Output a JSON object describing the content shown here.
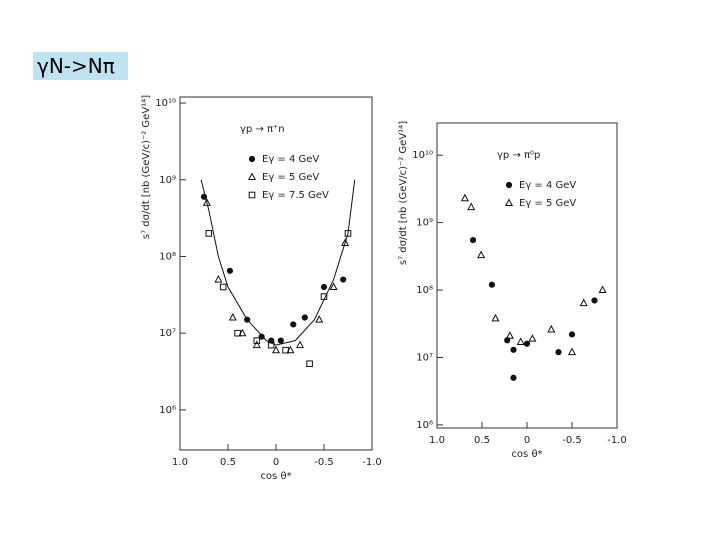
{
  "title": "γN->Nπ",
  "chart_data": [
    {
      "type": "scatter",
      "log_y": true,
      "reaction": "γp → π⁺n",
      "x_label": "cos θ*",
      "y_label": "s⁷ dσ/dt [nb (GeV/c)⁻² GeV¹⁴]",
      "xlim": [
        1,
        -1
      ],
      "ylim": [
        300000,
        12000000000
      ],
      "xticks": [
        {
          "value": 1,
          "label": "1.0"
        },
        0.5,
        0,
        -0.5,
        {
          "value": -1,
          "label": "-1.0"
        }
      ],
      "yticks": [
        {
          "value": 1000000,
          "label": "10⁶"
        },
        {
          "value": 10000000,
          "label": "10⁷"
        },
        {
          "value": 100000000,
          "label": "10⁸"
        },
        {
          "value": 1000000000,
          "label": "10⁹"
        },
        {
          "value": 10000000000,
          "label": "10¹⁰"
        }
      ],
      "series": [
        {
          "name": "Eγ = 4 GeV",
          "marker": "circle",
          "color": "#111",
          "x": [
            0.75,
            0.48,
            0.3,
            0.15,
            0.05,
            -0.05,
            -0.18,
            -0.3,
            -0.5,
            -0.7
          ],
          "values": [
            600000000,
            65000000,
            15000000,
            9000000,
            8000000,
            8000000,
            13000000,
            16000000,
            40000000,
            50000000
          ]
        },
        {
          "name": "Eγ = 5 GeV",
          "marker": "triangle",
          "color": "#111",
          "x": [
            0.72,
            0.6,
            0.45,
            0.35,
            0.2,
            0,
            -0.15,
            -0.25,
            -0.45,
            -0.6,
            -0.72
          ],
          "values": [
            500000000,
            50000000,
            16000000,
            10000000,
            7000000,
            6000000,
            6000000,
            7000000,
            15000000,
            40000000,
            150000000
          ]
        },
        {
          "name": "Eγ = 7.5 GeV",
          "marker": "square",
          "color": "#111",
          "x": [
            0.7,
            0.55,
            0.4,
            0.2,
            0.05,
            -0.1,
            -0.35,
            -0.5,
            -0.75
          ],
          "values": [
            200000000,
            40000000,
            10000000,
            8000000,
            7000000,
            6000000,
            4000000,
            30000000,
            200000000
          ]
        },
        {
          "marker": "line",
          "color": "#111",
          "x": [
            0.78,
            0.7,
            0.6,
            0.5,
            0.3,
            0.1,
            0,
            -0.2,
            -0.4,
            -0.6,
            -0.75,
            -0.82
          ],
          "values": [
            1000000000,
            400000000,
            100000000,
            40000000,
            15000000,
            8000000,
            7000000,
            8000000,
            15000000,
            50000000,
            200000000,
            1000000000
          ]
        }
      ]
    },
    {
      "type": "scatter",
      "log_y": true,
      "reaction": "γp → π⁰p",
      "x_label": "cos θ*",
      "y_label": "s⁷ dσ/dt [nb (GeV/c)⁻² GeV¹⁴]",
      "xlim": [
        1,
        -1
      ],
      "ylim": [
        900000,
        30000000000
      ],
      "xticks": [
        {
          "value": 1,
          "label": "1.0"
        },
        0.5,
        0,
        -0.5,
        {
          "value": -1,
          "label": "-1.0"
        }
      ],
      "yticks": [
        {
          "value": 1000000,
          "label": "10⁶"
        },
        {
          "value": 10000000,
          "label": "10⁷"
        },
        {
          "value": 100000000,
          "label": "10⁸"
        },
        {
          "value": 1000000000,
          "label": "10⁹"
        },
        {
          "value": 10000000000,
          "label": "10¹⁰"
        }
      ],
      "series": [
        {
          "name": "Eγ = 4 GeV",
          "marker": "circle",
          "color": "#111",
          "x": [
            0.6,
            0.39,
            0.22,
            0.15,
            0.15,
            0,
            -0.35,
            -0.5,
            -0.75
          ],
          "values": [
            550000000,
            120000000,
            18000000,
            13000000,
            5000000,
            16000000,
            12000000,
            22000000,
            70000000
          ]
        },
        {
          "name": "Eγ = 5 GeV",
          "marker": "triangle",
          "color": "#111",
          "x": [
            0.69,
            0.62,
            0.51,
            0.35,
            0.19,
            0.07,
            -0.06,
            -0.27,
            -0.5,
            -0.63,
            -0.84
          ],
          "values": [
            2300000000,
            1700000000,
            330000000,
            38000000,
            21000000,
            17000000,
            19000000,
            26000000,
            12000000,
            64000000,
            100000000
          ]
        }
      ]
    }
  ]
}
